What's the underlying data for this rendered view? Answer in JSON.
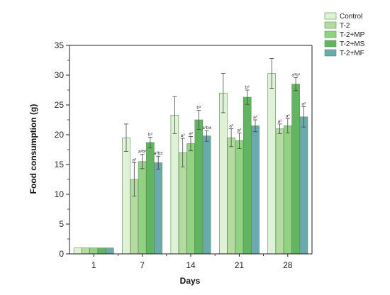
{
  "chart_data": {
    "type": "bar",
    "title": "",
    "xlabel": "Days",
    "ylabel": "Food consumption (g)",
    "categories": [
      "1",
      "7",
      "14",
      "21",
      "28"
    ],
    "ylim": [
      0,
      35
    ],
    "yticks": [
      0,
      5,
      10,
      15,
      20,
      25,
      30,
      35
    ],
    "grid": false,
    "legend_position": "top-right",
    "series": [
      {
        "name": "Control",
        "color": "#dff2d6",
        "values": [
          1,
          19.5,
          23.3,
          27,
          30.3
        ],
        "errors": [
          0,
          2.3,
          3.1,
          3.3,
          2.5
        ],
        "labels": [
          "",
          "",
          "",
          "",
          ""
        ]
      },
      {
        "name": "T-2",
        "color": "#b5dba1",
        "values": [
          1,
          12.5,
          17,
          19.5,
          21
        ],
        "errors": [
          0,
          2.8,
          2.4,
          1.5,
          0.8
        ],
        "labels": [
          "",
          "a³",
          "a²",
          "a²",
          "a²"
        ]
      },
      {
        "name": "T-2+MP",
        "color": "#93d185",
        "values": [
          1,
          15.5,
          18.5,
          19,
          21.5
        ],
        "errors": [
          0,
          1.2,
          1.2,
          1.3,
          1.2
        ],
        "labels": [
          "",
          "a³b²",
          "a²",
          "a²",
          "a²"
        ]
      },
      {
        "name": "T-2+MS",
        "color": "#62b560",
        "values": [
          1,
          18.7,
          22.5,
          26.3,
          28.5
        ],
        "errors": [
          0,
          0.9,
          1.6,
          1.2,
          1.1
        ],
        "labels": [
          "",
          "b³",
          "b³",
          "b³",
          "a³b³"
        ]
      },
      {
        "name": "T-2+MF",
        "color": "#6aa9ad",
        "values": [
          1,
          15.3,
          19.8,
          21.5,
          23
        ],
        "errors": [
          0,
          1.1,
          0.9,
          1.0,
          1.7
        ],
        "labels": [
          "",
          "a³b±",
          "a³b±",
          "a²",
          "a²"
        ]
      }
    ]
  }
}
